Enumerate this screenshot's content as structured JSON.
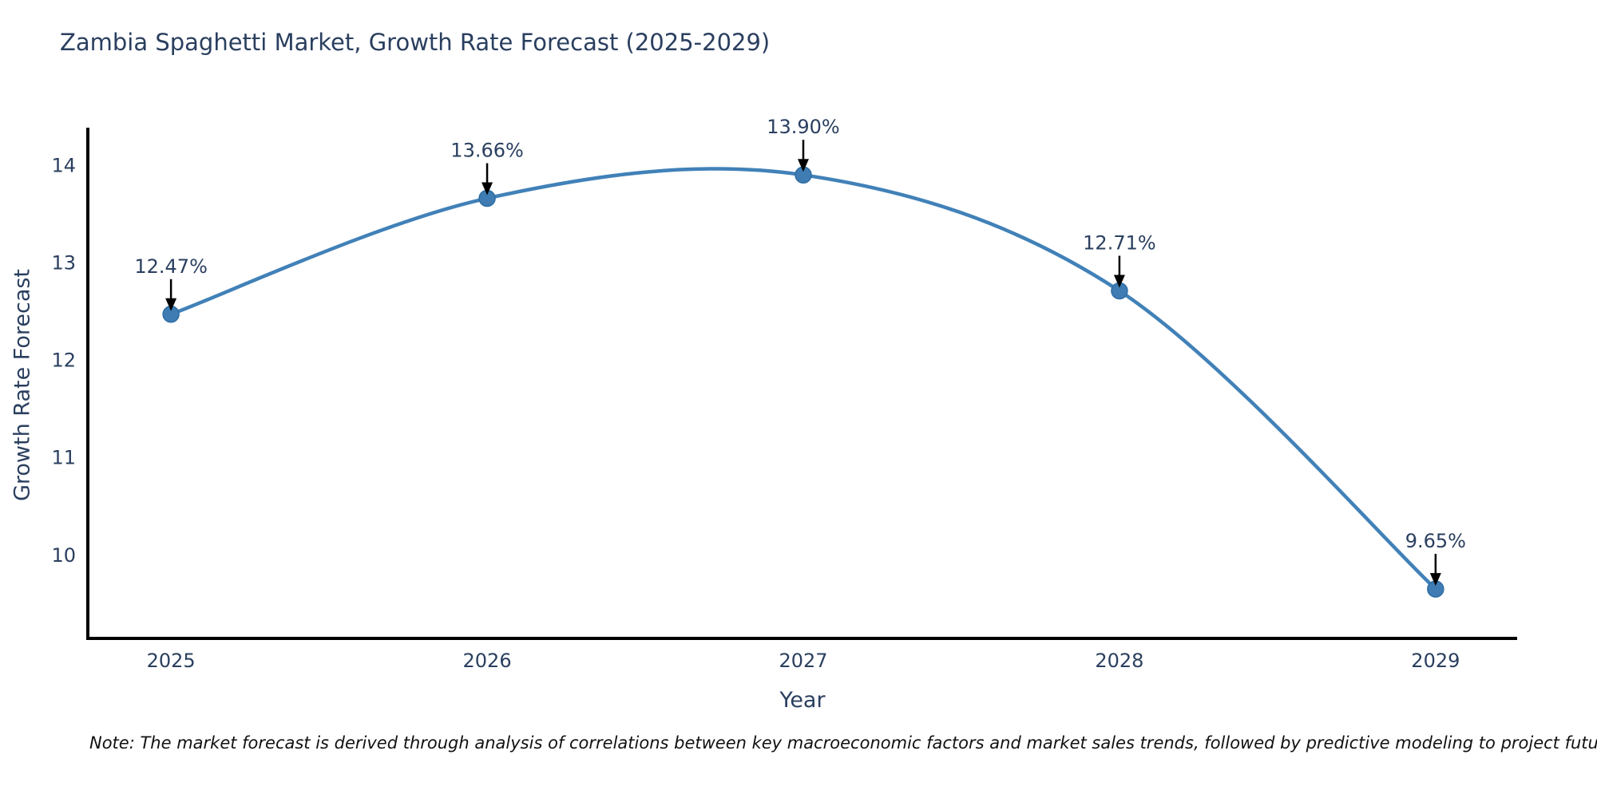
{
  "chart": {
    "title": "Zambia Spaghetti Market, Growth Rate Forecast (2025-2029)",
    "xlabel": "Year",
    "ylabel": "Growth Rate Forecast",
    "note": "Note: The market forecast is derived through analysis of correlations between key macroeconomic factors and market sales trends, followed by predictive modeling to project future sales"
  },
  "chart_data": {
    "type": "line",
    "line_shape": "spline",
    "title": "Zambia Spaghetti Market, Growth Rate Forecast (2025-2029)",
    "xlabel": "Year",
    "ylabel": "Growth Rate Forecast",
    "x": [
      2025,
      2026,
      2027,
      2028,
      2029
    ],
    "y": [
      12.47,
      13.66,
      13.9,
      12.71,
      9.65
    ],
    "point_labels": [
      "12.47%",
      "13.66%",
      "13.90%",
      "12.71%",
      "9.65%"
    ],
    "xticks": [
      "2025",
      "2026",
      "2027",
      "2028",
      "2029"
    ],
    "yticks": [
      10,
      11,
      12,
      13,
      14
    ],
    "xlim": [
      2024.737,
      2029.258
    ],
    "ylim": [
      9.143,
      14.385
    ],
    "grid": false,
    "legend": "none",
    "colors": {
      "line": "#4181b8",
      "marker": "#3e7cb3",
      "marker_edge": "#2f6da4",
      "arrow": "#000000",
      "axis": "#000000",
      "text": "#2a3f5f"
    }
  }
}
